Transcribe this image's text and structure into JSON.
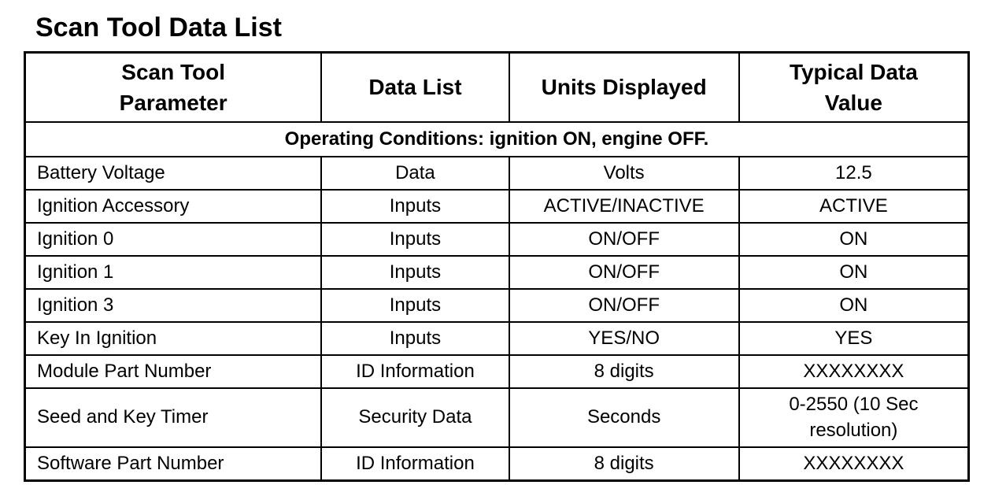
{
  "title": "Scan Tool Data List",
  "headers": [
    "Scan Tool Parameter",
    "Data List",
    "Units Displayed",
    "Typical Data Value"
  ],
  "operating_conditions": "Operating Conditions: ignition ON, engine OFF.",
  "rows": [
    [
      "Battery Voltage",
      "Data",
      "Volts",
      "12.5"
    ],
    [
      "Ignition Accessory",
      "Inputs",
      "ACTIVE/INACTIVE",
      "ACTIVE"
    ],
    [
      "Ignition 0",
      "Inputs",
      "ON/OFF",
      "ON"
    ],
    [
      "Ignition 1",
      "Inputs",
      "ON/OFF",
      "ON"
    ],
    [
      "Ignition 3",
      "Inputs",
      "ON/OFF",
      "ON"
    ],
    [
      "Key In Ignition",
      "Inputs",
      "YES/NO",
      "YES"
    ],
    [
      "Module Part Number",
      "ID Information",
      "8 digits",
      "XXXXXXXX"
    ],
    [
      "Seed and Key Timer",
      "Security Data",
      "Seconds",
      "0-2550 (10 Sec resolution)"
    ],
    [
      "Software Part Number",
      "ID Information",
      "8 digits",
      "XXXXXXXX"
    ]
  ]
}
